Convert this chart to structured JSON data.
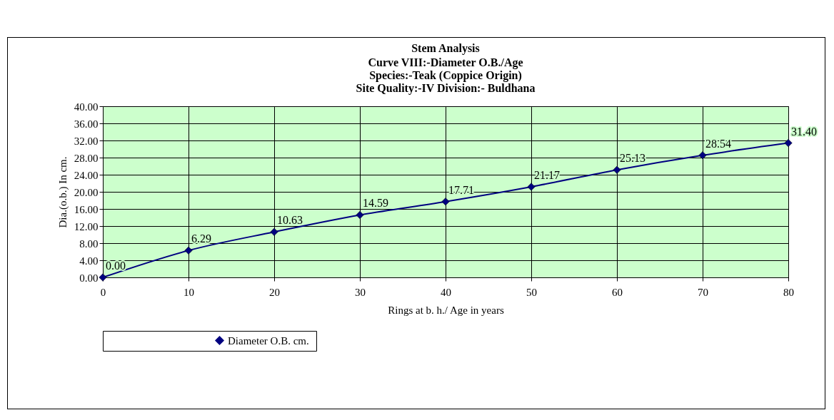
{
  "chart_data": {
    "type": "line",
    "title": "Stem Analysis",
    "subtitle": "Curve VIII:-Diameter  O.B./Age\nSpecies:-Teak (Coppice Origin)\nSite Quality:-IV  Division:- Buldhana",
    "xlabel": "Rings at b. h./ Age in years",
    "ylabel": "Dia.(o.b.) In cm.",
    "x": [
      0,
      10,
      20,
      30,
      40,
      50,
      60,
      70,
      80
    ],
    "series": [
      {
        "name": "Diameter  O.B. cm.",
        "color": "#000080",
        "values": [
          0,
          6.29,
          10.63,
          14.59,
          17.71,
          21.17,
          25.13,
          28.54,
          31.4
        ],
        "value_labels": [
          "0.00",
          "6.29",
          "10.63",
          "14.59",
          "17.71",
          "21.17",
          "25.13",
          "28.54",
          "31.40"
        ]
      }
    ],
    "xlim": [
      0,
      80
    ],
    "xticks": [
      0,
      10,
      20,
      30,
      40,
      50,
      60,
      70,
      80
    ],
    "ylim": [
      0,
      40
    ],
    "yticks": [
      {
        "value": 0,
        "label": "0.00"
      },
      {
        "value": 4,
        "label": "4.00"
      },
      {
        "value": 8,
        "label": "8.00"
      },
      {
        "value": 12,
        "label": "12.00"
      },
      {
        "value": 16,
        "label": "16.00"
      },
      {
        "value": 20,
        "label": "20.00"
      },
      {
        "value": 24,
        "label": "24.00"
      },
      {
        "value": 28,
        "label": "28.00"
      },
      {
        "value": 32,
        "label": "32.00"
      },
      {
        "value": 36,
        "label": "36.00"
      },
      {
        "value": 40,
        "label": "40.00"
      }
    ],
    "grid": true,
    "legend": "bottom",
    "marker": "diamond",
    "line_style": "solid"
  }
}
